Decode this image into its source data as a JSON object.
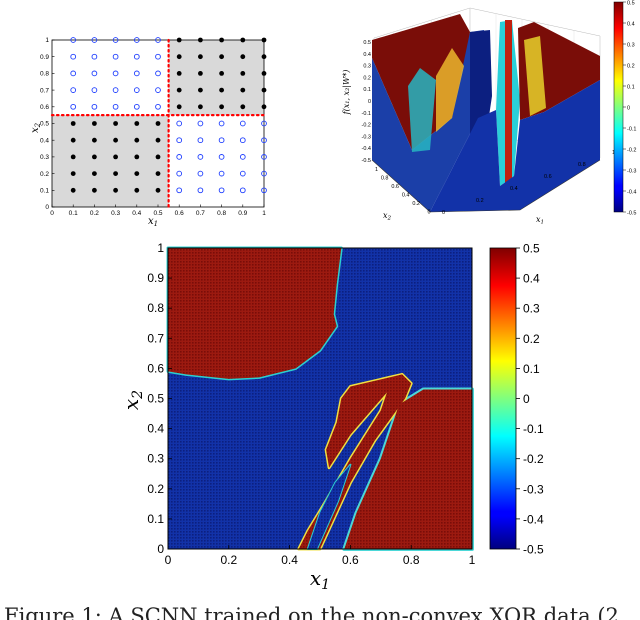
{
  "caption": "Figure 1: A SCNN trained on the non-convex XOR data (2",
  "chart_data": [
    {
      "type": "scatter",
      "title": "",
      "xlabel": "x1",
      "ylabel": "x2",
      "xlim": [
        0,
        1
      ],
      "ylim": [
        0,
        1
      ],
      "grid": false,
      "x_ticks": [
        "0",
        "0.1",
        "0.2",
        "0.3",
        "0.4",
        "0.5",
        "0.6",
        "0.7",
        "0.8",
        "0.9",
        "1"
      ],
      "y_ticks": [
        "0",
        "0.1",
        "0.2",
        "0.3",
        "0.4",
        "0.5",
        "0.6",
        "0.7",
        "0.8",
        "0.9",
        "1"
      ],
      "decision_boundary": {
        "x": 0.55,
        "y": 0.55,
        "color": "#ff0000",
        "style": "dotted"
      },
      "shaded_regions": [
        {
          "x": [
            0,
            0.55
          ],
          "y": [
            0,
            0.55
          ],
          "color": "#d9d9d9"
        },
        {
          "x": [
            0.55,
            1
          ],
          "y": [
            0.55,
            1
          ],
          "color": "#d9d9d9"
        }
      ],
      "series": [
        {
          "marker": "filled-circle",
          "color": "#000000",
          "x_values": [
            0.1,
            0.2,
            0.3,
            0.4,
            0.5
          ],
          "y_values": [
            0.1,
            0.2,
            0.3,
            0.4,
            0.5
          ]
        },
        {
          "marker": "filled-circle",
          "color": "#000000",
          "x_values": [
            0.6,
            0.7,
            0.8,
            0.9,
            1.0
          ],
          "y_values": [
            0.6,
            0.7,
            0.8,
            0.9,
            1.0
          ]
        },
        {
          "marker": "open-circle",
          "color": "#1f3fff",
          "x_values": [
            0.1,
            0.2,
            0.3,
            0.4,
            0.5
          ],
          "y_values": [
            0.6,
            0.7,
            0.8,
            0.9,
            1.0
          ]
        },
        {
          "marker": "open-circle",
          "color": "#1f3fff",
          "x_values": [
            0.6,
            0.7,
            0.8,
            0.9,
            1.0
          ],
          "y_values": [
            0.1,
            0.2,
            0.3,
            0.4,
            0.5
          ]
        }
      ]
    },
    {
      "type": "surface",
      "title": "",
      "xlabel": "x1",
      "ylabel": "x2",
      "zlabel": "f(x1, x2|W*)",
      "zlim": [
        -0.5,
        0.5
      ],
      "x_ticks": [
        "0",
        "0.2",
        "0.4",
        "0.6",
        "0.8",
        "1"
      ],
      "y_ticks": [
        "0",
        "0.2",
        "0.4",
        "0.6",
        "0.8",
        "1"
      ],
      "z_ticks": [
        "-0.5",
        "-0.4",
        "-0.3",
        "-0.2",
        "-0.1",
        "0",
        "0.1",
        "0.2",
        "0.3",
        "0.4",
        "0.5"
      ],
      "colorbar_ticks": [
        "0.5",
        "0.4",
        "0.3",
        "0.2",
        "0.1",
        "0",
        "-0.1",
        "-0.2",
        "-0.3",
        "-0.4",
        "-0.5"
      ]
    },
    {
      "type": "heatmap",
      "title": "",
      "xlabel": "x1",
      "ylabel": "x2",
      "xlim": [
        0,
        1
      ],
      "ylim": [
        0,
        1
      ],
      "colormap": "jet",
      "value_range": [
        -0.5,
        0.5
      ],
      "x_ticks": [
        "0",
        "0.2",
        "0.4",
        "0.6",
        "0.8",
        "1"
      ],
      "y_ticks": [
        "0",
        "0.1",
        "0.2",
        "0.3",
        "0.4",
        "0.5",
        "0.6",
        "0.7",
        "0.8",
        "0.9",
        "1"
      ],
      "colorbar_ticks": [
        "0.5",
        "0.4",
        "0.3",
        "0.2",
        "0.1",
        "0",
        "-0.1",
        "-0.2",
        "-0.3",
        "-0.4",
        "-0.5"
      ],
      "regions": [
        {
          "label": "top-left high",
          "value": 0.5
        },
        {
          "label": "bottom-left low",
          "value": -0.5
        },
        {
          "label": "top-right low",
          "value": -0.5
        },
        {
          "label": "bottom-right high",
          "value": 0.5
        },
        {
          "label": "diagonal band low",
          "value": -0.5
        }
      ]
    }
  ]
}
